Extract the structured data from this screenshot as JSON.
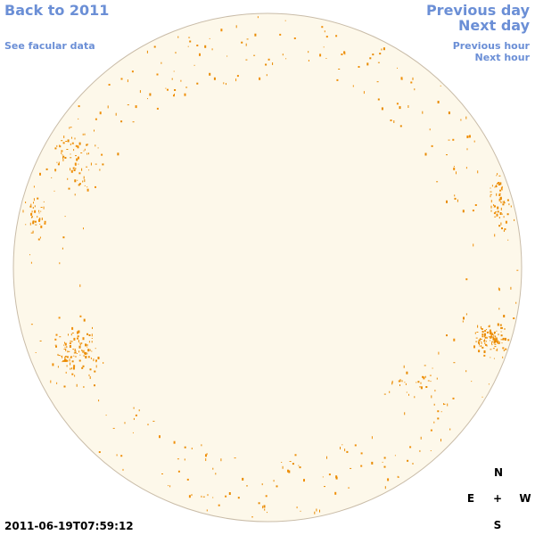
{
  "nav": {
    "back": "Back to 2011",
    "facular": "See facular data",
    "previous_day": "Previous day",
    "next_day": "Next day",
    "previous_hour": "Previous hour",
    "next_hour": "Next hour"
  },
  "compass": {
    "north": "N",
    "east": "E",
    "center": "+",
    "west": "W",
    "south": "S"
  },
  "timestamp": "2011-06-19T07:59:12"
}
